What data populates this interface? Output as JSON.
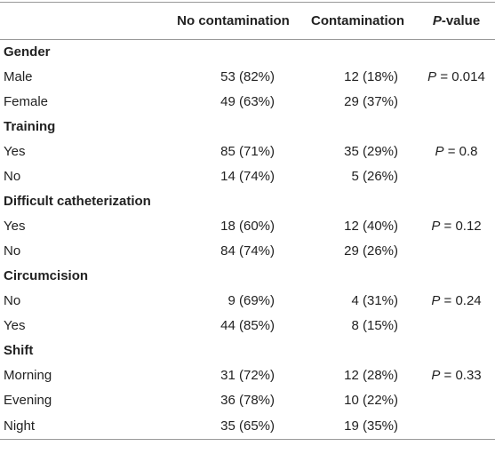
{
  "table": {
    "header": [
      "No contamination",
      "Contamination",
      "P-value"
    ],
    "groups": [
      {
        "label": "Gender",
        "rows": [
          [
            "Male",
            "53 (82%)",
            "12 (18%)",
            "P = 0.014"
          ],
          [
            "Female",
            "49 (63%)",
            "29 (37%)"
          ]
        ]
      },
      {
        "label": "Training",
        "rows": [
          [
            "Yes",
            "85 (71%)",
            "35 (29%)",
            "P = 0.8"
          ],
          [
            "No",
            "14 (74%)",
            "5 (26%)"
          ]
        ]
      },
      {
        "label": "Difficult catheterization",
        "rows": [
          [
            "Yes",
            "18 (60%)",
            "12 (40%)",
            "P = 0.12"
          ],
          [
            "No",
            "84 (74%)",
            "29 (26%)"
          ]
        ]
      },
      {
        "label": "Circumcision",
        "rows": [
          [
            "No",
            "9 (69%)",
            "4 (31%)",
            "P = 0.24"
          ],
          [
            "Yes",
            "44 (85%)",
            "8 (15%)"
          ]
        ]
      },
      {
        "label": "Shift",
        "rows": [
          [
            "Morning",
            "31 (72%)",
            "12 (28%)",
            "P = 0.33"
          ],
          [
            "Evening",
            "36 (78%)",
            "10 (22%)"
          ],
          [
            "Night",
            "35 (65%)",
            "19 (35%)"
          ]
        ]
      }
    ]
  }
}
